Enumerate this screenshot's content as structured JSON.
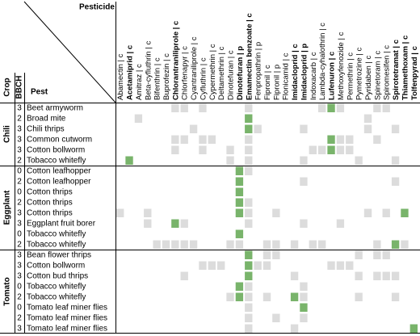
{
  "header": {
    "pesticide": "Pesticide",
    "pest": "Pest",
    "crop": "Crop",
    "bbch": "BBCH"
  },
  "colors": {
    "1": "#dcdcdc",
    "2": "#79b46b"
  },
  "pesticides": [
    {
      "name": "Abamectin | c",
      "bold": false
    },
    {
      "name": "Acetamiprid | c",
      "bold": true
    },
    {
      "name": "Amitraz | c",
      "bold": false
    },
    {
      "name": "Beta-cyfluthrin | c",
      "bold": false
    },
    {
      "name": "Bifenthrin | c",
      "bold": false
    },
    {
      "name": "Buprofezin | c",
      "bold": false
    },
    {
      "name": "Chlorantraniliprole | c",
      "bold": true
    },
    {
      "name": "Chlorfenapyr | c",
      "bold": false
    },
    {
      "name": "Cyantraniliprole | c",
      "bold": false
    },
    {
      "name": "Cyfluthrin | c",
      "bold": false
    },
    {
      "name": "Cypermethrin | c",
      "bold": false
    },
    {
      "name": "Deltamethrin | c",
      "bold": false
    },
    {
      "name": "Dinotefuran | c",
      "bold": false
    },
    {
      "name": "Dinotefuran | p",
      "bold": true
    },
    {
      "name": "Emamectin benzoate | c",
      "bold": true
    },
    {
      "name": "Fenpropathrin | p",
      "bold": false
    },
    {
      "name": "Fipronil | c",
      "bold": false
    },
    {
      "name": "Fipronil | p",
      "bold": false
    },
    {
      "name": "Flonicamid | c",
      "bold": false
    },
    {
      "name": "Imidacloprid | c",
      "bold": true
    },
    {
      "name": "Imidacloprid | p",
      "bold": true
    },
    {
      "name": "Indoxacarb | c",
      "bold": false
    },
    {
      "name": "Lambda-cyhalothrin | c",
      "bold": false
    },
    {
      "name": "Lufenuron | c",
      "bold": true
    },
    {
      "name": "Methoxyfenozide | c",
      "bold": false
    },
    {
      "name": "Permethrin | c",
      "bold": false
    },
    {
      "name": "Pymetrozine | c",
      "bold": false
    },
    {
      "name": "Pyridaben | c",
      "bold": false
    },
    {
      "name": "Spinetoram | c",
      "bold": false
    },
    {
      "name": "Spiromesifen | c",
      "bold": false
    },
    {
      "name": "Spirotetramat | c",
      "bold": true
    },
    {
      "name": "Thiamethoxam | c",
      "bold": true
    },
    {
      "name": "Tolfenpyrad | c",
      "bold": true
    }
  ],
  "groups": [
    {
      "crop": "Chili",
      "rows": [
        {
          "bbch": 3,
          "pest": "Beet armyworm",
          "cells": [
            0,
            0,
            0,
            0,
            0,
            0,
            1,
            1,
            0,
            1,
            0,
            0,
            0,
            0,
            1,
            0,
            0,
            0,
            0,
            0,
            0,
            0,
            1,
            2,
            1,
            0,
            0,
            0,
            1,
            1,
            0,
            0,
            0
          ]
        },
        {
          "bbch": 2,
          "pest": "Broad mite",
          "cells": [
            0,
            0,
            1,
            0,
            0,
            0,
            0,
            0,
            0,
            0,
            0,
            0,
            0,
            0,
            2,
            0,
            0,
            0,
            0,
            0,
            0,
            0,
            0,
            0,
            0,
            0,
            0,
            1,
            0,
            0,
            0,
            0,
            0
          ]
        },
        {
          "bbch": 3,
          "pest": "Chili thrips",
          "cells": [
            0,
            0,
            0,
            0,
            0,
            0,
            0,
            0,
            1,
            0,
            0,
            0,
            0,
            0,
            2,
            1,
            0,
            0,
            0,
            0,
            1,
            0,
            0,
            0,
            0,
            0,
            0,
            1,
            0,
            0,
            1,
            0,
            0
          ]
        },
        {
          "bbch": 3,
          "pest": "Common cutworm",
          "cells": [
            0,
            0,
            0,
            0,
            0,
            0,
            1,
            1,
            0,
            1,
            1,
            0,
            0,
            0,
            1,
            0,
            0,
            0,
            0,
            0,
            0,
            0,
            0,
            2,
            1,
            1,
            0,
            0,
            1,
            0,
            0,
            0,
            0
          ]
        },
        {
          "bbch": 3,
          "pest": "Cotton bollworm",
          "cells": [
            0,
            0,
            0,
            0,
            0,
            0,
            1,
            0,
            0,
            1,
            0,
            0,
            1,
            0,
            1,
            0,
            0,
            0,
            0,
            0,
            0,
            1,
            1,
            2,
            1,
            1,
            0,
            0,
            0,
            0,
            0,
            0,
            0
          ]
        },
        {
          "bbch": 2,
          "pest": "Tobacco whitefly",
          "cells": [
            0,
            2,
            0,
            0,
            0,
            0,
            0,
            0,
            0,
            0,
            0,
            0,
            1,
            0,
            1,
            0,
            0,
            0,
            0,
            0,
            1,
            0,
            0,
            0,
            0,
            0,
            1,
            0,
            0,
            0,
            1,
            0,
            0
          ]
        }
      ]
    },
    {
      "crop": "Eggplant",
      "rows": [
        {
          "bbch": 0,
          "pest": "Cotton leafhopper",
          "cells": [
            0,
            0,
            0,
            0,
            0,
            0,
            0,
            0,
            0,
            0,
            0,
            0,
            0,
            2,
            1,
            0,
            0,
            0,
            0,
            0,
            0,
            0,
            0,
            0,
            0,
            0,
            0,
            0,
            0,
            0,
            0,
            0,
            0
          ]
        },
        {
          "bbch": 2,
          "pest": "Cotton leafhopper",
          "cells": [
            0,
            0,
            0,
            0,
            0,
            0,
            0,
            0,
            0,
            0,
            0,
            0,
            0,
            2,
            0,
            0,
            0,
            0,
            0,
            0,
            1,
            0,
            0,
            0,
            0,
            0,
            0,
            0,
            0,
            0,
            1,
            0,
            0
          ]
        },
        {
          "bbch": 0,
          "pest": "Cotton thrips",
          "cells": [
            0,
            0,
            0,
            0,
            0,
            0,
            0,
            0,
            0,
            0,
            0,
            0,
            0,
            2,
            0,
            0,
            0,
            0,
            0,
            0,
            0,
            0,
            0,
            0,
            0,
            0,
            0,
            0,
            0,
            0,
            0,
            0,
            0
          ]
        },
        {
          "bbch": 2,
          "pest": "Cotton thrips",
          "cells": [
            0,
            0,
            0,
            0,
            0,
            0,
            0,
            0,
            0,
            0,
            0,
            0,
            0,
            2,
            1,
            0,
            0,
            0,
            0,
            0,
            0,
            0,
            0,
            0,
            0,
            0,
            0,
            0,
            0,
            0,
            0,
            0,
            0
          ]
        },
        {
          "bbch": 3,
          "pest": "Cotton thrips",
          "cells": [
            1,
            0,
            0,
            1,
            0,
            0,
            0,
            0,
            0,
            0,
            0,
            0,
            0,
            2,
            1,
            0,
            0,
            1,
            0,
            0,
            0,
            0,
            0,
            0,
            0,
            0,
            0,
            1,
            0,
            1,
            0,
            2,
            0
          ]
        },
        {
          "bbch": 3,
          "pest": "Eggplant fruit borer",
          "cells": [
            0,
            0,
            0,
            1,
            0,
            0,
            2,
            1,
            0,
            0,
            0,
            0,
            0,
            0,
            1,
            0,
            0,
            0,
            0,
            0,
            1,
            0,
            0,
            0,
            1,
            0,
            0,
            0,
            0,
            0,
            0,
            0,
            0
          ]
        },
        {
          "bbch": 0,
          "pest": "Tobacco whitefly",
          "cells": [
            0,
            0,
            0,
            0,
            0,
            0,
            0,
            0,
            0,
            0,
            0,
            0,
            0,
            2,
            0,
            0,
            0,
            0,
            0,
            0,
            0,
            0,
            0,
            0,
            0,
            0,
            0,
            0,
            0,
            0,
            0,
            0,
            0
          ]
        },
        {
          "bbch": 2,
          "pest": "Tobacco whitefly",
          "cells": [
            0,
            0,
            0,
            0,
            1,
            1,
            1,
            1,
            1,
            0,
            0,
            0,
            1,
            1,
            0,
            0,
            1,
            1,
            0,
            1,
            0,
            1,
            1,
            0,
            0,
            0,
            0,
            0,
            1,
            0,
            2,
            1,
            0
          ]
        }
      ]
    },
    {
      "crop": "Tomato",
      "rows": [
        {
          "bbch": 3,
          "pest": "Bean flower thrips",
          "cells": [
            0,
            0,
            0,
            0,
            0,
            0,
            0,
            0,
            0,
            0,
            0,
            0,
            0,
            0,
            2,
            0,
            1,
            1,
            0,
            0,
            0,
            0,
            0,
            0,
            0,
            0,
            1,
            0,
            1,
            1,
            0,
            0,
            0
          ]
        },
        {
          "bbch": 3,
          "pest": "Cotton bollworm",
          "cells": [
            0,
            0,
            0,
            0,
            0,
            0,
            0,
            0,
            0,
            1,
            1,
            1,
            0,
            0,
            2,
            1,
            1,
            0,
            0,
            0,
            0,
            0,
            0,
            1,
            1,
            1,
            0,
            0,
            0,
            0,
            0,
            0,
            0
          ]
        },
        {
          "bbch": 3,
          "pest": "Cotton bud thrips",
          "cells": [
            0,
            0,
            0,
            0,
            0,
            0,
            0,
            1,
            0,
            0,
            0,
            0,
            0,
            0,
            2,
            0,
            0,
            0,
            0,
            1,
            0,
            0,
            0,
            0,
            0,
            0,
            1,
            0,
            1,
            1,
            1,
            0,
            0
          ]
        },
        {
          "bbch": 0,
          "pest": "Tobacco whitefly",
          "cells": [
            0,
            0,
            0,
            0,
            0,
            0,
            0,
            0,
            0,
            0,
            0,
            0,
            0,
            2,
            1,
            0,
            0,
            0,
            0,
            0,
            1,
            0,
            0,
            0,
            0,
            0,
            0,
            0,
            0,
            0,
            0,
            0,
            0
          ]
        },
        {
          "bbch": 2,
          "pest": "Tobacco whitefly",
          "cells": [
            0,
            0,
            0,
            0,
            0,
            0,
            0,
            0,
            0,
            0,
            0,
            0,
            1,
            2,
            1,
            0,
            1,
            0,
            0,
            2,
            1,
            0,
            0,
            0,
            0,
            0,
            1,
            0,
            0,
            0,
            1,
            0,
            0
          ]
        },
        {
          "bbch": 0,
          "pest": "Tomato leaf miner flies",
          "cells": [
            0,
            0,
            0,
            0,
            0,
            0,
            0,
            0,
            0,
            0,
            0,
            0,
            0,
            0,
            1,
            0,
            0,
            0,
            0,
            0,
            2,
            0,
            0,
            0,
            0,
            0,
            0,
            0,
            0,
            0,
            0,
            0,
            0
          ]
        },
        {
          "bbch": 2,
          "pest": "Tomato leaf miner flies",
          "cells": [
            0,
            0,
            0,
            0,
            0,
            0,
            0,
            0,
            0,
            0,
            0,
            0,
            0,
            0,
            1,
            0,
            0,
            1,
            0,
            0,
            1,
            0,
            0,
            0,
            0,
            0,
            0,
            0,
            0,
            0,
            0,
            0,
            0
          ]
        },
        {
          "bbch": 3,
          "pest": "Tomato leaf miner flies",
          "cells": [
            0,
            0,
            0,
            0,
            0,
            0,
            0,
            0,
            0,
            0,
            0,
            0,
            0,
            0,
            1,
            0,
            0,
            0,
            0,
            1,
            0,
            0,
            0,
            0,
            0,
            0,
            0,
            0,
            0,
            0,
            0,
            0,
            2
          ]
        }
      ]
    }
  ]
}
